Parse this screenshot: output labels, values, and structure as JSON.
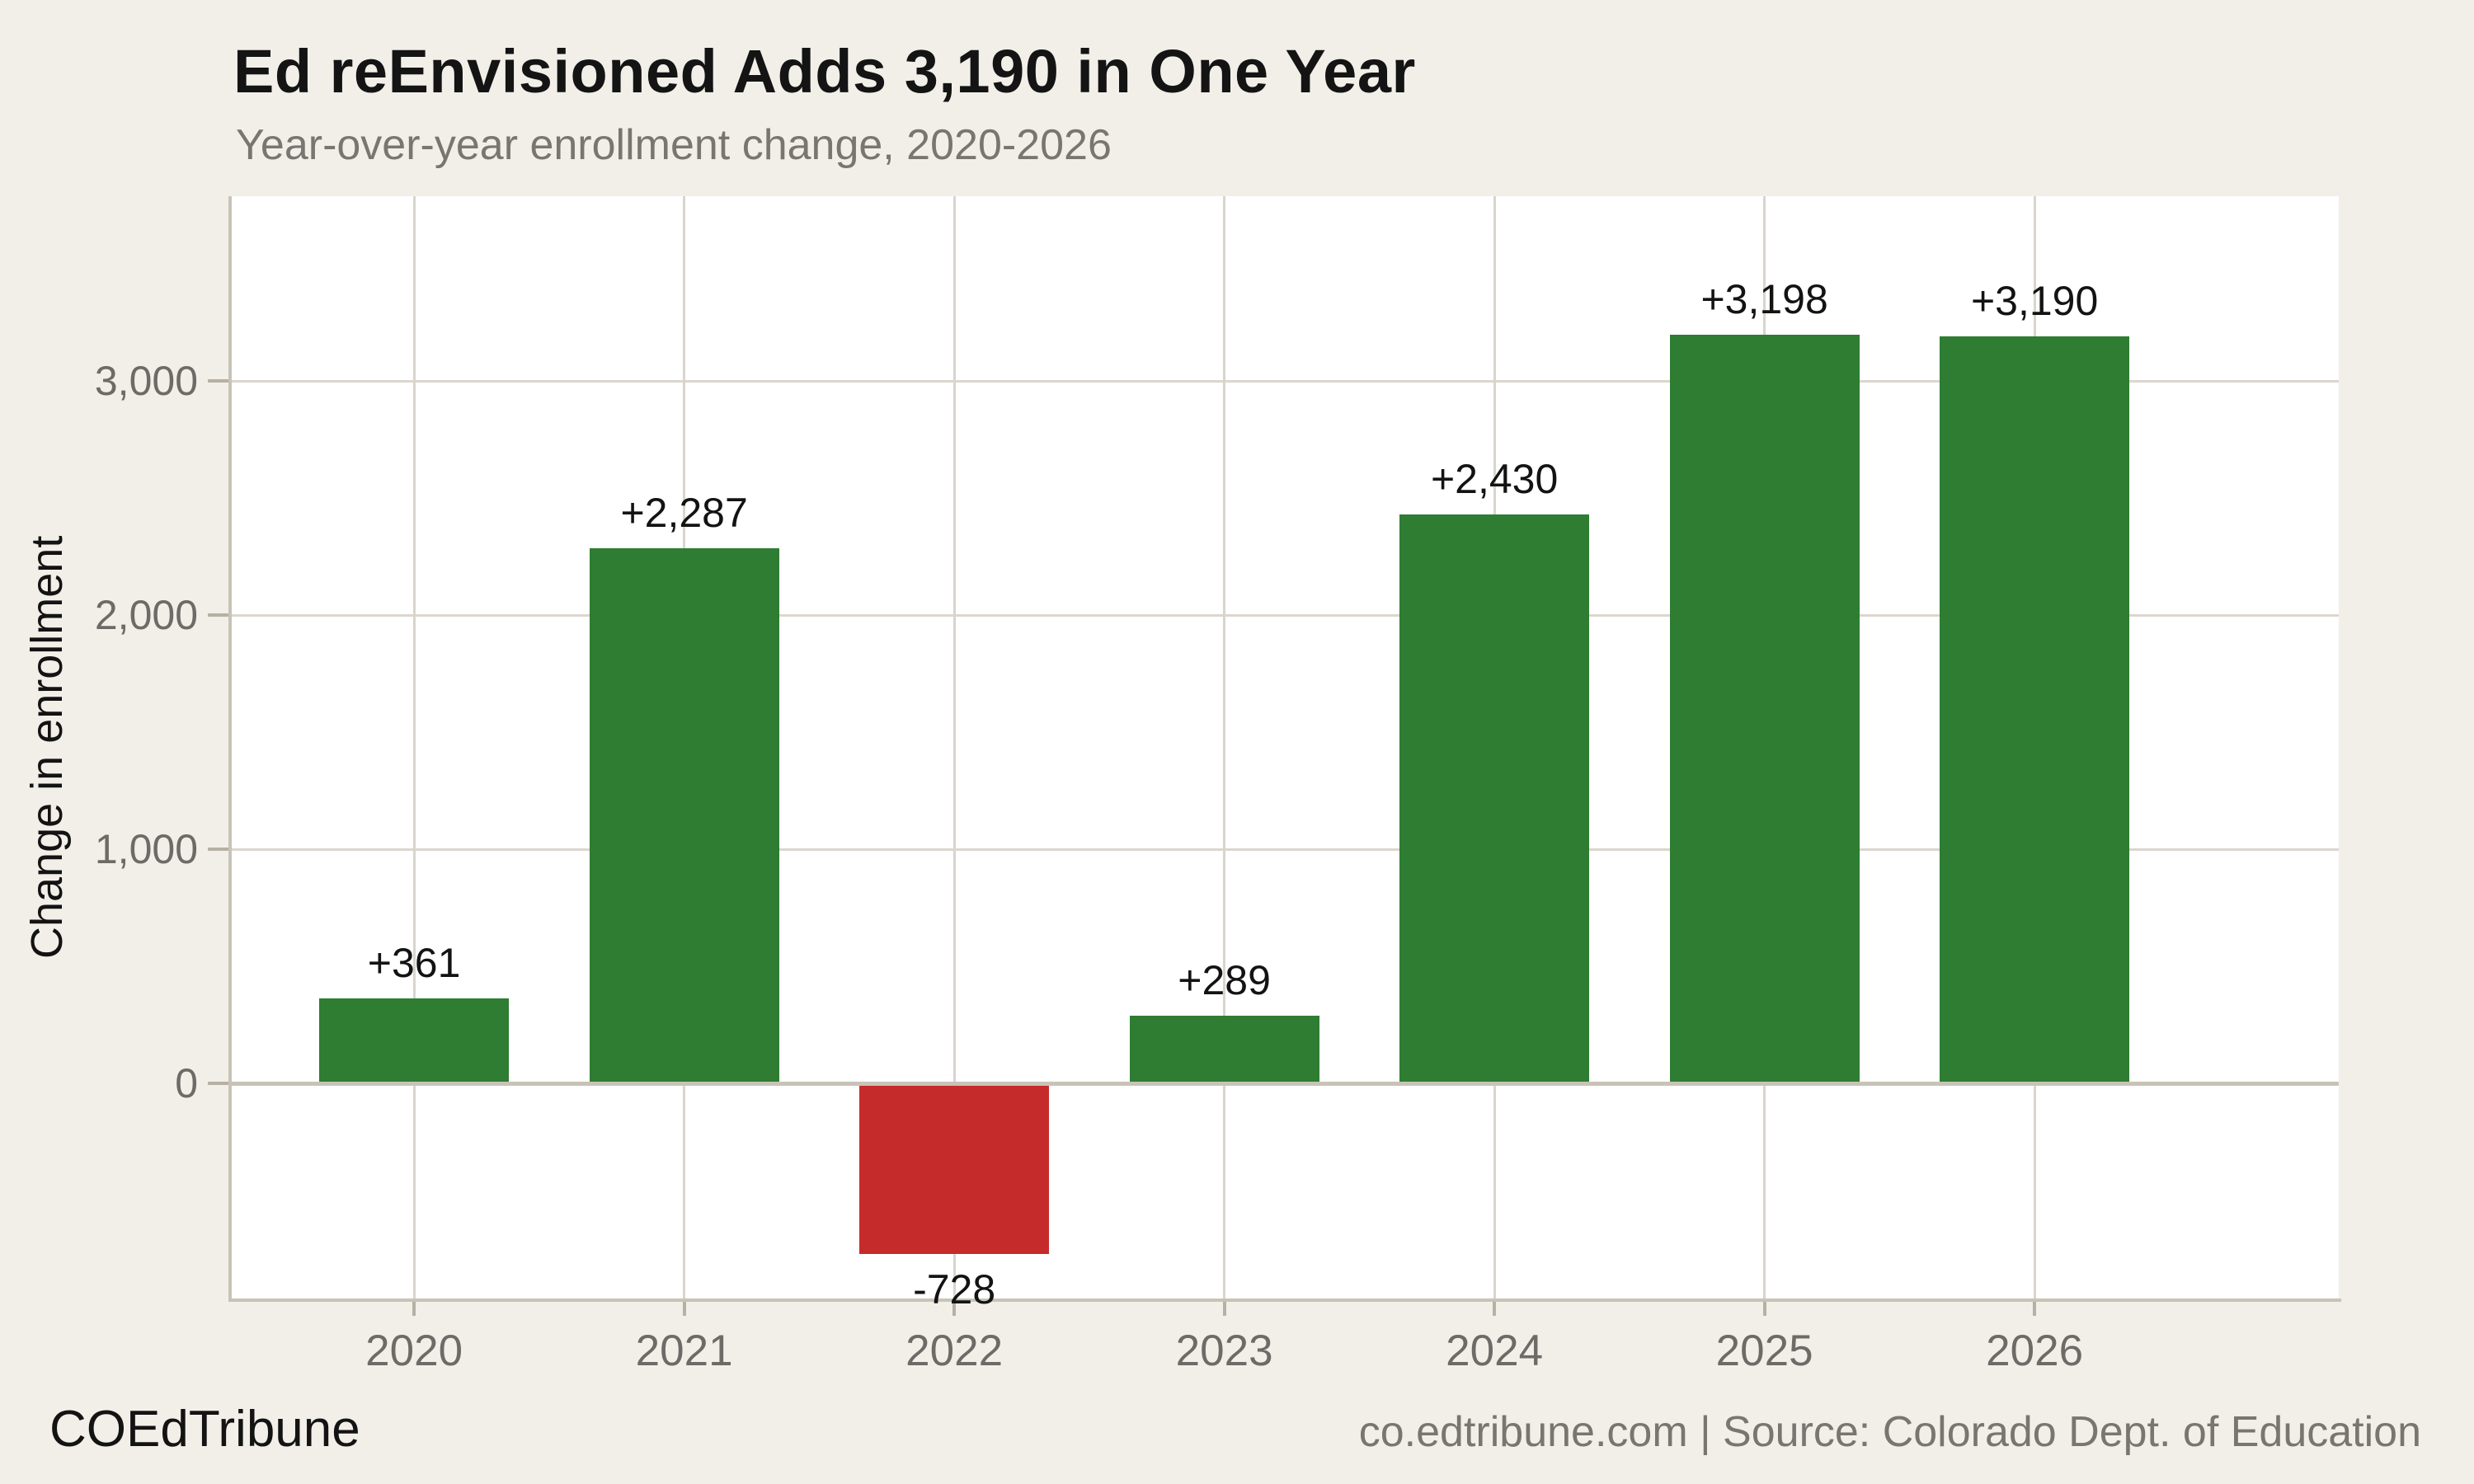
{
  "header": {
    "title": "Ed reEnvisioned Adds 3,190 in One Year",
    "subtitle": "Year-over-year enrollment change, 2020-2026"
  },
  "chart_data": {
    "type": "bar",
    "title": "Ed reEnvisioned Adds 3,190 in One Year",
    "subtitle": "Year-over-year enrollment change, 2020-2026",
    "categories": [
      "2020",
      "2021",
      "2022",
      "2023",
      "2024",
      "2025",
      "2026"
    ],
    "values": [
      361,
      2287,
      -728,
      289,
      2430,
      3198,
      3190
    ],
    "bar_labels": [
      "+361",
      "+2,287",
      "-728",
      "+289",
      "+2,430",
      "+3,198",
      "+3,190"
    ],
    "xlabel": "",
    "ylabel": "Change in enrollment",
    "ylim": [
      -919,
      3789
    ],
    "yticks": [
      0,
      1000,
      2000,
      3000
    ],
    "ytick_labels": [
      "0",
      "1,000",
      "2,000",
      "3,000"
    ],
    "grid": true,
    "legend": false,
    "positive_color": "#2e7d32",
    "negative_color": "#c52b2a"
  },
  "colors": {
    "background": "#f2efe9",
    "plot_background": "#ffffff",
    "gridline": "#dbd7ce",
    "axis": "#c9c3b7",
    "tick_label": "#6d6b67",
    "positive_bar": "#2e7d32",
    "negative_bar": "#c52b2a"
  },
  "footer": {
    "brand": "COEdTribune",
    "source": "co.edtribune.com | Source: Colorado Dept. of Education"
  }
}
